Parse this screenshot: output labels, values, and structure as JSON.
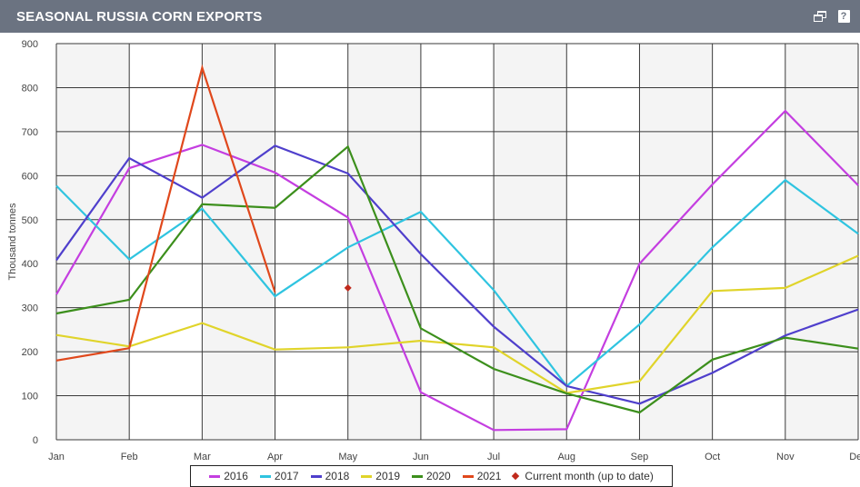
{
  "header": {
    "title": "SEASONAL RUSSIA CORN EXPORTS",
    "icons": [
      "window-restore-icon",
      "help-icon"
    ],
    "help_glyph": "?"
  },
  "chart_data": {
    "type": "line",
    "title": "SEASONAL RUSSIA CORN EXPORTS",
    "xlabel": "",
    "ylabel": "Thousand tonnes",
    "categories": [
      "Jan",
      "Feb",
      "Mar",
      "Apr",
      "May",
      "Jun",
      "Jul",
      "Aug",
      "Sep",
      "Oct",
      "Nov",
      "Dec"
    ],
    "ylim": [
      0,
      900
    ],
    "yticks": [
      0,
      100,
      200,
      300,
      400,
      500,
      600,
      700,
      800,
      900
    ],
    "grid": true,
    "legend_position": "bottom",
    "series": [
      {
        "name": "2016",
        "color": "#c43ee0",
        "values": [
          330,
          617,
          670,
          607,
          505,
          108,
          22,
          24,
          400,
          580,
          747,
          578
        ]
      },
      {
        "name": "2017",
        "color": "#2fc4e0",
        "values": [
          577,
          410,
          525,
          326,
          437,
          518,
          340,
          122,
          262,
          437,
          590,
          468
        ]
      },
      {
        "name": "2018",
        "color": "#4f3fcc",
        "values": [
          408,
          640,
          550,
          668,
          605,
          422,
          257,
          122,
          82,
          152,
          237,
          296
        ]
      },
      {
        "name": "2019",
        "color": "#e0d42a",
        "values": [
          238,
          212,
          265,
          205,
          210,
          225,
          210,
          106,
          133,
          338,
          345,
          418
        ]
      },
      {
        "name": "2020",
        "color": "#3c8f1c",
        "values": [
          287,
          318,
          535,
          527,
          666,
          253,
          161,
          105,
          62,
          182,
          232,
          207
        ]
      },
      {
        "name": "2021",
        "color": "#e0481c",
        "values": [
          180,
          208,
          845,
          335,
          null,
          null,
          null,
          null,
          null,
          null,
          null,
          null
        ]
      }
    ],
    "current_month": {
      "name": "Current month (up to date)",
      "color": "#c0291c",
      "x": "May",
      "value": 345
    }
  }
}
